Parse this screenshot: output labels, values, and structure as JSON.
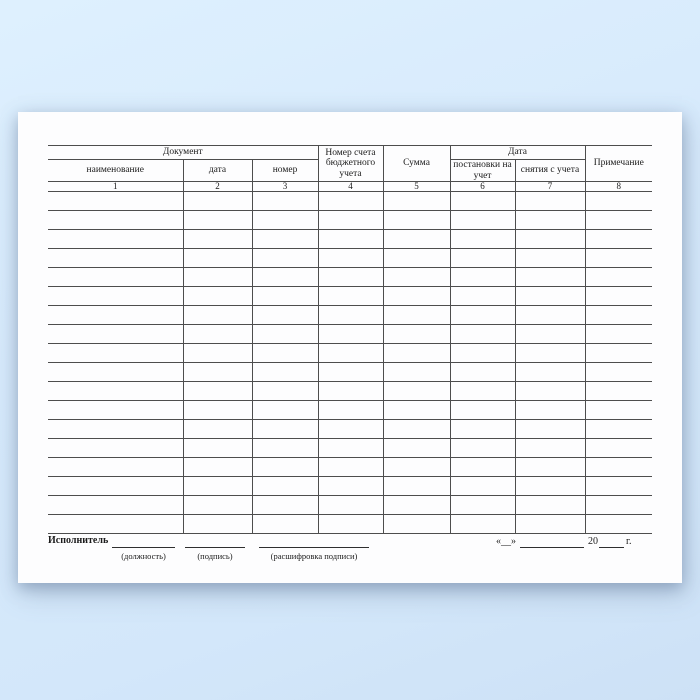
{
  "table": {
    "group_document": "Документ",
    "group_date": "Дата",
    "col_account": "Номер счета бюджетного учета",
    "col_sum": "Сумма",
    "col_note": "Примечание",
    "sub_name": "наименование",
    "sub_date": "дата",
    "sub_number": "номер",
    "sub_reg": "постановки на учет",
    "sub_dereg": "снятия с учета",
    "numbers": [
      "1",
      "2",
      "3",
      "4",
      "5",
      "6",
      "7",
      "8"
    ],
    "empty_row_count": 18,
    "columns_count": 8
  },
  "footer": {
    "executor_label": "Исполнитель",
    "position_label": "(должность)",
    "signature_label": "(подпись)",
    "transcript_label": "(расшифровка подписи)",
    "date_quote": "«__»",
    "date_year_prefix": "20",
    "date_year_suffix": "г."
  },
  "colors": {
    "background_blue": "#d7eafc",
    "paper": "#fdfdfe",
    "grid_line": "#4d4d4d",
    "text": "#1b1b1b"
  }
}
